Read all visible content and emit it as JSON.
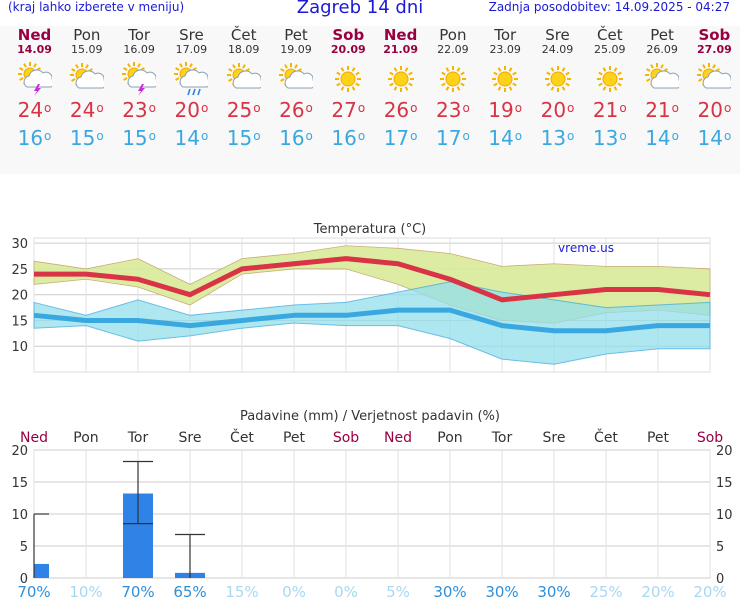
{
  "header": {
    "left_note": "(kraj lahko izberete v meniju)",
    "title": "Zagreb 14 dni",
    "updated": "Zadnja posodobitev: 14.09.2025 - 04:27"
  },
  "days": [
    {
      "name": "Ned",
      "date": "14.09",
      "weekend": true,
      "icon": "thunderstorm-sun-icon",
      "tmax": "24",
      "tmin": "16"
    },
    {
      "name": "Pon",
      "date": "15.09",
      "weekend": false,
      "icon": "sun-cloud-icon",
      "tmax": "24",
      "tmin": "15"
    },
    {
      "name": "Tor",
      "date": "16.09",
      "weekend": false,
      "icon": "thunderstorm-sun-icon",
      "tmax": "23",
      "tmin": "15"
    },
    {
      "name": "Sre",
      "date": "17.09",
      "weekend": false,
      "icon": "rain-sun-icon",
      "tmax": "20",
      "tmin": "14"
    },
    {
      "name": "Čet",
      "date": "18.09",
      "weekend": false,
      "icon": "sun-cloud-icon",
      "tmax": "25",
      "tmin": "15"
    },
    {
      "name": "Pet",
      "date": "19.09",
      "weekend": false,
      "icon": "sun-cloud-icon",
      "tmax": "26",
      "tmin": "16"
    },
    {
      "name": "Sob",
      "date": "20.09",
      "weekend": true,
      "icon": "sun-icon",
      "tmax": "27",
      "tmin": "16"
    },
    {
      "name": "Ned",
      "date": "21.09",
      "weekend": true,
      "icon": "sun-icon",
      "tmax": "26",
      "tmin": "17"
    },
    {
      "name": "Pon",
      "date": "22.09",
      "weekend": false,
      "icon": "sun-icon",
      "tmax": "23",
      "tmin": "17"
    },
    {
      "name": "Tor",
      "date": "23.09",
      "weekend": false,
      "icon": "sun-icon",
      "tmax": "19",
      "tmin": "14"
    },
    {
      "name": "Sre",
      "date": "24.09",
      "weekend": false,
      "icon": "sun-icon",
      "tmax": "20",
      "tmin": "13"
    },
    {
      "name": "Čet",
      "date": "25.09",
      "weekend": false,
      "icon": "sun-icon",
      "tmax": "21",
      "tmin": "13"
    },
    {
      "name": "Pet",
      "date": "26.09",
      "weekend": false,
      "icon": "sun-cloud-icon",
      "tmax": "21",
      "tmin": "14"
    },
    {
      "name": "Sob",
      "date": "27.09",
      "weekend": true,
      "icon": "sun-cloud-icon",
      "tmax": "20",
      "tmin": "14"
    }
  ],
  "deg_symbol": "o",
  "colors": {
    "max_line": "#d93346",
    "max_band": "#d9ec9a",
    "min_line": "#3aa8e0",
    "min_band": "#93dfeb",
    "overlap": "#86d48c",
    "bar": "#2f83e6",
    "weekend": "#990044",
    "grid": "#cccccc",
    "prob": "#3aa8e0"
  },
  "chart_data": [
    {
      "type": "line",
      "title": "Temperatura (°C)",
      "watermark": "vreme.us",
      "categories": [
        "14.09",
        "15.09",
        "16.09",
        "17.09",
        "18.09",
        "19.09",
        "20.09",
        "21.09",
        "22.09",
        "23.09",
        "24.09",
        "25.09",
        "26.09",
        "27.09"
      ],
      "ylim": [
        5,
        31
      ],
      "yticks": [
        10,
        15,
        20,
        25,
        30
      ],
      "grid": true,
      "series": [
        {
          "values": [
            24,
            24,
            23,
            20,
            25,
            26,
            27,
            26,
            23,
            19,
            20,
            21,
            21,
            20
          ]
        },
        {
          "values": [
            16,
            15,
            15,
            14,
            15,
            16,
            16,
            17,
            17,
            14,
            13,
            13,
            14,
            14
          ]
        }
      ],
      "max_band_upper": [
        26.5,
        25,
        27,
        22,
        27,
        28,
        29.5,
        29,
        28,
        25.5,
        26,
        25.5,
        25.5,
        25
      ],
      "max_band_lower": [
        22,
        23,
        21.5,
        18,
        24,
        25,
        25,
        22,
        18,
        15,
        14.5,
        16.5,
        17,
        16
      ],
      "min_band_upper": [
        18.5,
        16,
        19,
        16,
        17,
        18,
        18.5,
        20.5,
        22.5,
        20.5,
        19,
        17.5,
        18,
        18.5
      ],
      "min_band_lower": [
        13.5,
        14,
        11,
        12,
        13.5,
        14.5,
        14,
        14,
        11.5,
        7.5,
        6.5,
        8.5,
        9.5,
        9.5
      ]
    },
    {
      "type": "bar",
      "title": "Padavine (mm) / Verjetnost padavin (%)",
      "categories": [
        "Ned",
        "Pon",
        "Tor",
        "Sre",
        "Čet",
        "Pet",
        "Sob",
        "Ned",
        "Pon",
        "Tor",
        "Sre",
        "Čet",
        "Pet",
        "Sob"
      ],
      "weekend": [
        true,
        false,
        false,
        false,
        false,
        false,
        true,
        true,
        false,
        false,
        false,
        false,
        false,
        true
      ],
      "ylim": [
        0,
        20
      ],
      "yticks": [
        0,
        5,
        10,
        15,
        20
      ],
      "values": [
        2.2,
        0,
        13.2,
        0.8,
        0,
        0,
        0,
        0,
        0,
        0,
        0,
        0,
        0,
        0
      ],
      "error_low": [
        0,
        null,
        8.5,
        0,
        null,
        null,
        null,
        null,
        null,
        null,
        null,
        null,
        null,
        null
      ],
      "error_high": [
        10,
        null,
        18.2,
        6.8,
        null,
        null,
        null,
        null,
        null,
        null,
        null,
        null,
        null,
        null
      ],
      "probability": [
        "70%",
        "10%",
        "70%",
        "65%",
        "15%",
        "0%",
        "0%",
        "5%",
        "30%",
        "30%",
        "30%",
        "25%",
        "20%",
        "20%"
      ],
      "probability_values": [
        70,
        10,
        70,
        65,
        15,
        0,
        0,
        5,
        30,
        30,
        30,
        25,
        20,
        20
      ]
    }
  ]
}
